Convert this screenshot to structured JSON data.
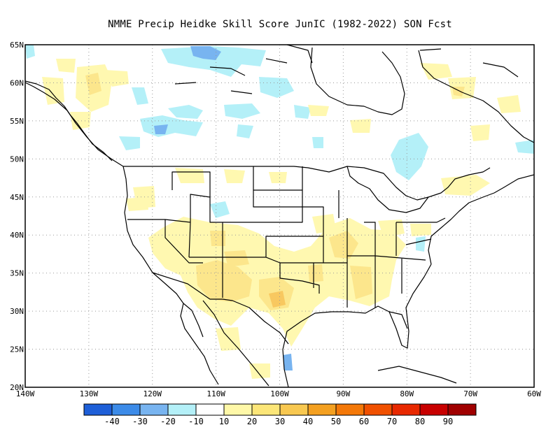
{
  "title": "NMME Precip Heidke Skill Score JunIC (1982-2022) SON Fcst",
  "map": {
    "lon_range": [
      -140,
      -60
    ],
    "lat_range": [
      20,
      65
    ],
    "lat_labels": [
      "65N",
      "60N",
      "55N",
      "50N",
      "45N",
      "40N",
      "35N",
      "30N",
      "25N",
      "20N"
    ],
    "lon_labels": [
      "140W",
      "130W",
      "120W",
      "110W",
      "100W",
      "90W",
      "80W",
      "70W",
      "60W"
    ]
  },
  "colorbar": {
    "colors": [
      "#1e5fd8",
      "#3c8be8",
      "#78b4f0",
      "#b4f0f8",
      "#ffffff",
      "#fff8a8",
      "#fce678",
      "#f8c850",
      "#f4a020",
      "#f47808",
      "#f05000",
      "#e82800",
      "#c80000",
      "#a00000"
    ],
    "labels": [
      "-40",
      "-30",
      "-20",
      "-10",
      "10",
      "20",
      "30",
      "40",
      "50",
      "60",
      "70",
      "80",
      "90"
    ]
  },
  "colors": {
    "light_yellow": "#fff8b0",
    "yellow": "#fce68c",
    "orange": "#f8c860",
    "light_blue": "#b4f0f8",
    "blue": "#78b4f0"
  }
}
